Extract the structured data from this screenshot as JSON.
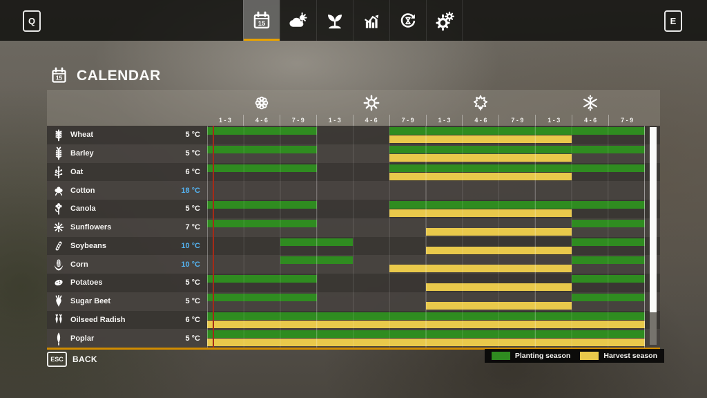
{
  "topbar": {
    "left_key": "Q",
    "right_key": "E",
    "tabs": [
      {
        "name": "calendar",
        "icon": "calendar-icon",
        "active": true
      },
      {
        "name": "weather",
        "icon": "weather-icon",
        "active": false
      },
      {
        "name": "crops",
        "icon": "seedling-icon",
        "active": false
      },
      {
        "name": "statistics",
        "icon": "stats-icon",
        "active": false
      },
      {
        "name": "rotation",
        "icon": "cycle-icon",
        "active": false
      },
      {
        "name": "settings",
        "icon": "gears-icon",
        "active": false
      }
    ]
  },
  "page": {
    "title": "CALENDAR"
  },
  "calendar": {
    "seasons": [
      {
        "name": "spring",
        "icon": "flower-icon",
        "periods": [
          "1 - 3",
          "4 - 6",
          "7 - 9"
        ]
      },
      {
        "name": "summer",
        "icon": "sun-icon",
        "periods": [
          "1 - 3",
          "4 - 6",
          "7 - 9"
        ]
      },
      {
        "name": "autumn",
        "icon": "leaf-icon",
        "periods": [
          "1 - 3",
          "4 - 6",
          "7 - 9"
        ]
      },
      {
        "name": "winter",
        "icon": "snowflake-icon",
        "periods": [
          "1 - 3",
          "4 - 6",
          "7 - 9"
        ]
      }
    ],
    "crops": [
      {
        "name": "Wheat",
        "icon": "wheat",
        "temp": "5 °C",
        "temp_blue": false,
        "planting": [
          [
            1,
            3
          ],
          [
            6,
            12
          ]
        ],
        "harvest": [
          [
            6,
            10
          ]
        ]
      },
      {
        "name": "Barley",
        "icon": "barley",
        "temp": "5 °C",
        "temp_blue": false,
        "planting": [
          [
            1,
            3
          ],
          [
            6,
            12
          ]
        ],
        "harvest": [
          [
            6,
            10
          ]
        ]
      },
      {
        "name": "Oat",
        "icon": "oat",
        "temp": "6 °C",
        "temp_blue": false,
        "planting": [
          [
            1,
            3
          ],
          [
            6,
            12
          ]
        ],
        "harvest": [
          [
            6,
            10
          ]
        ]
      },
      {
        "name": "Cotton",
        "icon": "cotton",
        "temp": "18 °C",
        "temp_blue": true,
        "planting": [],
        "harvest": []
      },
      {
        "name": "Canola",
        "icon": "canola",
        "temp": "5 °C",
        "temp_blue": false,
        "planting": [
          [
            1,
            3
          ],
          [
            6,
            12
          ]
        ],
        "harvest": [
          [
            6,
            10
          ]
        ]
      },
      {
        "name": "Sunflowers",
        "icon": "sunflower",
        "temp": "7 °C",
        "temp_blue": false,
        "planting": [
          [
            1,
            3
          ],
          [
            11,
            12
          ]
        ],
        "harvest": [
          [
            7,
            10
          ]
        ]
      },
      {
        "name": "Soybeans",
        "icon": "soybeans",
        "temp": "10 °C",
        "temp_blue": true,
        "planting": [
          [
            3,
            4
          ],
          [
            11,
            12
          ]
        ],
        "harvest": [
          [
            7,
            10
          ]
        ]
      },
      {
        "name": "Corn",
        "icon": "corn",
        "temp": "10 °C",
        "temp_blue": true,
        "planting": [
          [
            3,
            4
          ],
          [
            11,
            12
          ]
        ],
        "harvest": [
          [
            6,
            10
          ]
        ]
      },
      {
        "name": "Potatoes",
        "icon": "potato",
        "temp": "5 °C",
        "temp_blue": false,
        "planting": [
          [
            1,
            3
          ],
          [
            11,
            12
          ]
        ],
        "harvest": [
          [
            7,
            10
          ]
        ]
      },
      {
        "name": "Sugar Beet",
        "icon": "sugarbeet",
        "temp": "5 °C",
        "temp_blue": false,
        "planting": [
          [
            1,
            3
          ],
          [
            11,
            12
          ]
        ],
        "harvest": [
          [
            7,
            10
          ]
        ]
      },
      {
        "name": "Oilseed Radish",
        "icon": "radish",
        "temp": "6 °C",
        "temp_blue": false,
        "planting": [
          [
            1,
            12
          ]
        ],
        "harvest": [
          [
            1,
            12
          ]
        ]
      },
      {
        "name": "Poplar",
        "icon": "poplar",
        "temp": "5 °C",
        "temp_blue": false,
        "planting": [
          [
            1,
            12
          ]
        ],
        "harvest": [
          [
            1,
            12
          ]
        ]
      }
    ],
    "columns_total": 12
  },
  "footer": {
    "back_key": "ESC",
    "back_label": "BACK",
    "legend": [
      {
        "name": "planting-season",
        "label": "Planting season",
        "color": "#2f8c20"
      },
      {
        "name": "harvest-season",
        "label": "Harvest season",
        "color": "#e9c94b"
      }
    ]
  },
  "colors": {
    "planting": "#2f8c20",
    "harvest": "#e9c94b",
    "accent_orange": "#e8a200",
    "temp_blue": "#54b2ef",
    "current_day_line": "#a62a18"
  }
}
